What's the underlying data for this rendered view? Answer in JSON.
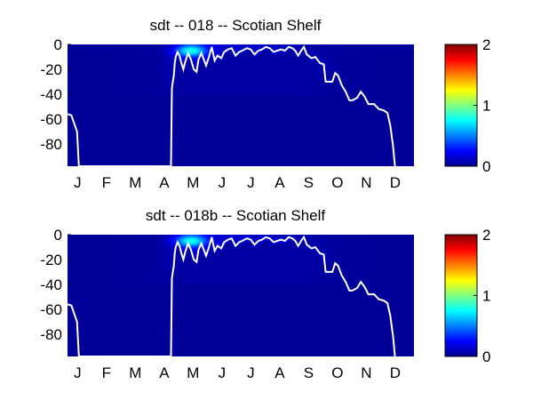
{
  "chart_data": [
    {
      "type": "heatmap",
      "title": "sdt -- 018 -- Scotian Shelf",
      "x_ticks": [
        "J",
        "F",
        "M",
        "A",
        "M",
        "J",
        "J",
        "A",
        "S",
        "O",
        "N",
        "D"
      ],
      "xlim": [
        0,
        365
      ],
      "y_ticks": [
        0,
        -20,
        -40,
        -60,
        -80
      ],
      "ylim": [
        -98,
        0
      ],
      "colorbar": {
        "ticks": [
          0,
          1,
          2
        ],
        "range": [
          0,
          2
        ],
        "colormap": "jet"
      },
      "background_value": 0.05,
      "field_hotspots": [
        {
          "doy": 130,
          "depth": -5,
          "value": 0.75
        },
        {
          "doy": 165,
          "depth": -18,
          "value": 0.7
        },
        {
          "doy": 190,
          "depth": -27,
          "value": 0.6
        },
        {
          "doy": 225,
          "depth": -12,
          "value": 0.35
        },
        {
          "doy": 250,
          "depth": -18,
          "value": 0.3
        }
      ],
      "line_color": "#ffffff",
      "mixed_layer_depth": [
        [
          0,
          -56
        ],
        [
          4,
          -57
        ],
        [
          10,
          -70
        ],
        [
          12,
          -98
        ],
        [
          109,
          -98
        ],
        [
          110,
          -35
        ],
        [
          112,
          -25
        ],
        [
          113,
          -15
        ],
        [
          114,
          -10
        ],
        [
          116,
          -6
        ],
        [
          118,
          -9
        ],
        [
          120,
          -15
        ],
        [
          122,
          -20
        ],
        [
          124,
          -14
        ],
        [
          127,
          -7
        ],
        [
          130,
          -12
        ],
        [
          133,
          -20
        ],
        [
          136,
          -22
        ],
        [
          138,
          -12
        ],
        [
          141,
          -7
        ],
        [
          143,
          -11
        ],
        [
          146,
          -17
        ],
        [
          149,
          -10
        ],
        [
          152,
          -2
        ],
        [
          155,
          -13
        ],
        [
          158,
          -9
        ],
        [
          162,
          -11
        ],
        [
          165,
          -6
        ],
        [
          169,
          -4
        ],
        [
          173,
          -3
        ],
        [
          177,
          -9
        ],
        [
          181,
          -6
        ],
        [
          184,
          -5
        ],
        [
          189,
          -3
        ],
        [
          193,
          -4
        ],
        [
          197,
          -8
        ],
        [
          201,
          -5
        ],
        [
          205,
          -4
        ],
        [
          209,
          -2
        ],
        [
          213,
          -3
        ],
        [
          217,
          -6
        ],
        [
          221,
          -5
        ],
        [
          225,
          -4
        ],
        [
          229,
          -5
        ],
        [
          233,
          -2
        ],
        [
          237,
          -3
        ],
        [
          240,
          -5
        ],
        [
          243,
          -9
        ],
        [
          247,
          -4
        ],
        [
          249,
          -2
        ],
        [
          252,
          -8
        ],
        [
          257,
          -11
        ],
        [
          261,
          -10
        ],
        [
          266,
          -15
        ],
        [
          270,
          -16
        ],
        [
          272,
          -30
        ],
        [
          279,
          -30
        ],
        [
          282,
          -23
        ],
        [
          285,
          -25
        ],
        [
          289,
          -33
        ],
        [
          293,
          -38
        ],
        [
          297,
          -45
        ],
        [
          300,
          -45
        ],
        [
          305,
          -43
        ],
        [
          309,
          -38
        ],
        [
          313,
          -42
        ],
        [
          317,
          -48
        ],
        [
          323,
          -48
        ],
        [
          328,
          -52
        ],
        [
          333,
          -53
        ],
        [
          337,
          -55
        ],
        [
          340,
          -65
        ],
        [
          343,
          -82
        ],
        [
          345,
          -98
        ]
      ]
    },
    {
      "type": "heatmap",
      "title": "sdt -- 018b -- Scotian Shelf",
      "x_ticks": [
        "J",
        "F",
        "M",
        "A",
        "M",
        "J",
        "J",
        "A",
        "S",
        "O",
        "N",
        "D"
      ],
      "xlim": [
        0,
        365
      ],
      "y_ticks": [
        0,
        -20,
        -40,
        -60,
        -80
      ],
      "ylim": [
        -98,
        0
      ],
      "colorbar": {
        "ticks": [
          0,
          1,
          2
        ],
        "range": [
          0,
          2
        ],
        "colormap": "jet"
      },
      "background_value": 0.05,
      "field_hotspots": [
        {
          "doy": 130,
          "depth": -5,
          "value": 0.75
        },
        {
          "doy": 165,
          "depth": -18,
          "value": 0.7
        },
        {
          "doy": 190,
          "depth": -27,
          "value": 0.6
        },
        {
          "doy": 225,
          "depth": -12,
          "value": 0.35
        },
        {
          "doy": 250,
          "depth": -18,
          "value": 0.3
        }
      ],
      "line_color": "#ffffff",
      "mixed_layer_depth": [
        [
          0,
          -56
        ],
        [
          4,
          -57
        ],
        [
          10,
          -70
        ],
        [
          12,
          -98
        ],
        [
          109,
          -98
        ],
        [
          110,
          -35
        ],
        [
          112,
          -25
        ],
        [
          113,
          -15
        ],
        [
          114,
          -10
        ],
        [
          116,
          -6
        ],
        [
          118,
          -9
        ],
        [
          120,
          -15
        ],
        [
          122,
          -20
        ],
        [
          124,
          -14
        ],
        [
          127,
          -7
        ],
        [
          130,
          -12
        ],
        [
          133,
          -20
        ],
        [
          136,
          -22
        ],
        [
          138,
          -12
        ],
        [
          141,
          -7
        ],
        [
          143,
          -11
        ],
        [
          146,
          -17
        ],
        [
          149,
          -10
        ],
        [
          152,
          -2
        ],
        [
          155,
          -13
        ],
        [
          158,
          -9
        ],
        [
          162,
          -11
        ],
        [
          165,
          -6
        ],
        [
          169,
          -4
        ],
        [
          173,
          -3
        ],
        [
          177,
          -9
        ],
        [
          181,
          -6
        ],
        [
          184,
          -5
        ],
        [
          189,
          -3
        ],
        [
          193,
          -4
        ],
        [
          197,
          -8
        ],
        [
          201,
          -5
        ],
        [
          205,
          -4
        ],
        [
          209,
          -2
        ],
        [
          213,
          -3
        ],
        [
          217,
          -6
        ],
        [
          221,
          -5
        ],
        [
          225,
          -4
        ],
        [
          229,
          -5
        ],
        [
          233,
          -2
        ],
        [
          237,
          -3
        ],
        [
          240,
          -5
        ],
        [
          243,
          -9
        ],
        [
          247,
          -4
        ],
        [
          249,
          -2
        ],
        [
          252,
          -8
        ],
        [
          257,
          -11
        ],
        [
          261,
          -10
        ],
        [
          266,
          -15
        ],
        [
          270,
          -16
        ],
        [
          272,
          -30
        ],
        [
          279,
          -30
        ],
        [
          282,
          -23
        ],
        [
          285,
          -25
        ],
        [
          289,
          -33
        ],
        [
          293,
          -38
        ],
        [
          297,
          -45
        ],
        [
          300,
          -45
        ],
        [
          305,
          -43
        ],
        [
          309,
          -38
        ],
        [
          313,
          -42
        ],
        [
          317,
          -48
        ],
        [
          323,
          -48
        ],
        [
          328,
          -52
        ],
        [
          333,
          -53
        ],
        [
          337,
          -55
        ],
        [
          340,
          -65
        ],
        [
          343,
          -82
        ],
        [
          345,
          -98
        ]
      ]
    }
  ]
}
